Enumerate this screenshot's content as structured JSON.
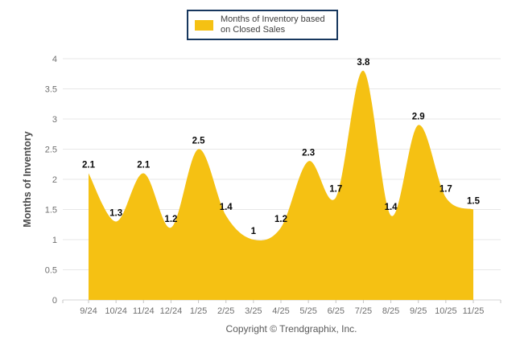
{
  "legend": {
    "label": "Months of Inventory based on Closed Sales"
  },
  "footer": {
    "copyright": "Copyright © Trendgraphix, Inc."
  },
  "chart_data": {
    "type": "area",
    "title": "",
    "categories": [
      "9/24",
      "10/24",
      "11/24",
      "12/24",
      "1/25",
      "2/25",
      "3/25",
      "4/25",
      "5/25",
      "6/25",
      "7/25",
      "8/25",
      "9/25",
      "10/25",
      "11/25"
    ],
    "series": [
      {
        "name": "Months of Inventory based on Closed Sales",
        "values": [
          2.1,
          1.3,
          2.1,
          1.2,
          2.5,
          1.4,
          1,
          1.2,
          2.3,
          1.7,
          3.8,
          1.4,
          2.9,
          1.7,
          1.5
        ]
      }
    ],
    "xlabel": "",
    "ylabel": "Months of Inventory",
    "ylim": [
      0,
      4
    ],
    "ytick_step": 0.5,
    "grid": true,
    "legend_position": "top",
    "data_labels": true,
    "smooth": true,
    "colors": {
      "area": "#F5C113",
      "legend_border": "#17375E",
      "legend_text": "#3E3E3E",
      "grid": "#E7E7E7",
      "axis_line": "#D6D6D6",
      "tick_mark": "#C4C4C4",
      "tick_label": "#6F6F6F",
      "axis_title": "#4A4A4A",
      "data_label": "#0A0A0A",
      "copyright_text": "#5A5A5A"
    }
  }
}
